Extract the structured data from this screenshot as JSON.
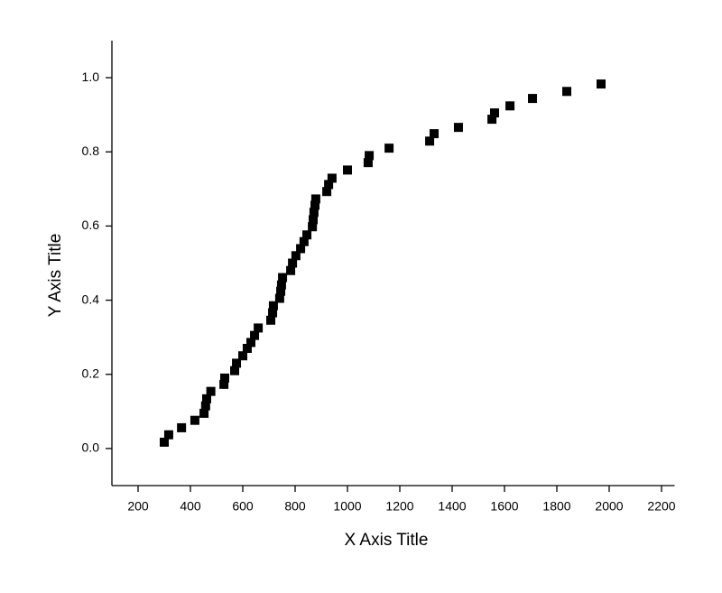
{
  "chart_data": {
    "type": "scatter",
    "x_label": "X Axis Title",
    "y_label": "Y Axis Title",
    "color": "#000000",
    "marker": "square",
    "xlim": [
      100,
      2250
    ],
    "ylim": [
      -0.1,
      1.1
    ],
    "xticks": [
      200,
      400,
      600,
      800,
      1000,
      1200,
      1400,
      1600,
      1800,
      2000,
      2200
    ],
    "yticks": [
      {
        "value": 0,
        "label": "0.0"
      },
      0.2,
      0.4,
      0.6,
      0.8,
      {
        "value": 1,
        "label": "1.0"
      }
    ],
    "x": [
      300,
      317,
      366,
      417,
      452,
      458,
      462,
      478,
      528,
      531,
      569,
      576,
      600,
      617,
      631,
      645,
      659,
      707,
      714,
      717,
      741,
      745,
      748,
      752,
      783,
      790,
      803,
      821,
      834,
      845,
      866,
      869,
      872,
      876,
      879,
      921,
      928,
      941,
      1000,
      1079,
      1083,
      1159,
      1314,
      1331,
      1424,
      1552,
      1562,
      1621,
      1707,
      1838,
      1969
    ],
    "y": [
      0.017,
      0.037,
      0.056,
      0.076,
      0.095,
      0.115,
      0.134,
      0.154,
      0.173,
      0.19,
      0.21,
      0.23,
      0.25,
      0.27,
      0.286,
      0.305,
      0.325,
      0.346,
      0.366,
      0.385,
      0.405,
      0.424,
      0.441,
      0.461,
      0.48,
      0.5,
      0.52,
      0.539,
      0.558,
      0.576,
      0.598,
      0.617,
      0.637,
      0.656,
      0.673,
      0.693,
      0.712,
      0.729,
      0.751,
      0.771,
      0.79,
      0.81,
      0.829,
      0.849,
      0.866,
      0.888,
      0.905,
      0.924,
      0.944,
      0.963,
      0.983
    ]
  }
}
